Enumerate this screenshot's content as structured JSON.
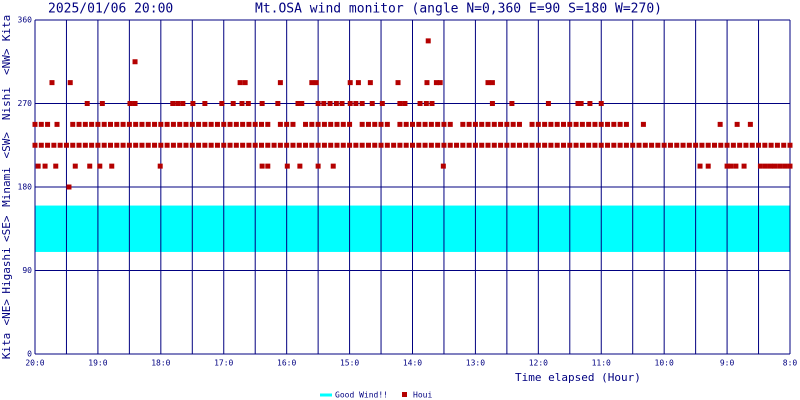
{
  "chart_data": {
    "type": "scatter",
    "date": "2025/01/06 20:00",
    "title": "Mt.OSA wind monitor (angle N=0,360 E=90 S=180 W=270)",
    "x_label": "Time elapsed (Hour)",
    "direction_labels": [
      "Kita",
      "<NE>",
      "Higashi",
      "<SE>",
      "Minami",
      "<SW>",
      "Nishi",
      "<NW>",
      "Kita"
    ],
    "xlim": [
      0,
      12
    ],
    "ylim": [
      0,
      360
    ],
    "xticks": [
      {
        "value": 0,
        "label": "20:0"
      },
      {
        "value": 1,
        "label": "19:0"
      },
      {
        "value": 2,
        "label": "18:0"
      },
      {
        "value": 3,
        "label": "17:0"
      },
      {
        "value": 4,
        "label": "16:0"
      },
      {
        "value": 5,
        "label": "15:0"
      },
      {
        "value": 6,
        "label": "14:0"
      },
      {
        "value": 7,
        "label": "13:0"
      },
      {
        "value": 8,
        "label": "12:0"
      },
      {
        "value": 9,
        "label": "11:0"
      },
      {
        "value": 10,
        "label": "10:0"
      },
      {
        "value": 11,
        "label": "9:0"
      },
      {
        "value": 12,
        "label": "8:0"
      }
    ],
    "xminor": [
      0.5,
      1.5,
      2.5,
      3.5,
      4.5,
      5.5,
      6.5,
      7.5,
      8.5,
      9.5,
      10.5,
      11.5
    ],
    "yticks": [
      0,
      90,
      180,
      270,
      360
    ],
    "grid": true,
    "band": {
      "name": "Good Wind!!",
      "color": "#00ffff",
      "range": [
        110,
        160
      ]
    },
    "series": [
      {
        "name": "Houi",
        "color": "#b40000",
        "x": [
          0,
          0.1,
          0.2,
          0.3,
          0.4,
          0.5,
          0.6,
          0.7,
          0.8,
          0.9,
          1,
          1.1,
          1.2,
          1.3,
          1.4,
          1.5,
          1.6,
          1.7,
          1.8,
          1.9,
          2,
          2.1,
          2.2,
          2.3,
          2.4,
          2.5,
          2.6,
          2.7,
          2.8,
          2.9,
          3,
          3.1,
          3.2,
          3.3,
          3.4,
          3.5,
          3.6,
          3.7,
          3.8,
          3.9,
          4,
          4.1,
          4.2,
          4.3,
          4.4,
          4.5,
          4.6,
          4.7,
          4.8,
          4.9,
          5,
          5.1,
          5.2,
          5.3,
          5.4,
          5.5,
          5.6,
          5.7,
          5.8,
          5.9,
          6,
          6.1,
          6.2,
          6.3,
          6.4,
          6.5,
          6.6,
          6.7,
          6.8,
          6.9,
          7,
          7.1,
          7.2,
          7.3,
          7.4,
          7.5,
          7.6,
          7.7,
          7.8,
          7.9,
          8,
          8.1,
          8.2,
          8.3,
          8.4,
          8.5,
          8.6,
          8.7,
          8.8,
          8.9,
          9,
          9.1,
          9.2,
          9.3,
          9.4,
          9.5,
          9.6,
          9.7,
          9.8,
          9.9,
          10,
          10.1,
          10.2,
          10.3,
          10.4,
          10.5,
          10.6,
          10.7,
          10.8,
          10.9,
          11,
          11.1,
          11.2,
          11.3,
          11.4,
          11.5,
          11.6,
          11.7,
          11.8,
          11.9,
          12,
          0,
          0.1,
          0.2,
          0.35,
          0.6,
          0.7,
          0.8,
          0.9,
          1.0,
          1.1,
          1.2,
          1.3,
          1.4,
          1.5,
          1.6,
          1.7,
          1.8,
          1.9,
          2.0,
          2.1,
          2.2,
          2.3,
          2.4,
          2.5,
          2.6,
          2.7,
          2.8,
          2.9,
          3.0,
          3.1,
          3.2,
          3.3,
          3.4,
          3.5,
          3.6,
          3.7,
          3.9,
          4.0,
          4.1,
          4.3,
          4.4,
          4.5,
          4.6,
          4.7,
          4.8,
          4.9,
          5.0,
          5.2,
          5.3,
          5.4,
          5.5,
          5.6,
          5.8,
          5.9,
          6.0,
          6.1,
          6.2,
          6.3,
          6.4,
          6.5,
          6.6,
          6.8,
          6.9,
          7.0,
          7.1,
          7.2,
          7.3,
          7.4,
          7.5,
          7.6,
          7.7,
          7.9,
          8.0,
          8.1,
          8.2,
          8.3,
          8.4,
          8.5,
          8.6,
          8.7,
          8.8,
          8.9,
          9.0,
          9.1,
          9.2,
          9.3,
          9.4,
          9.67,
          10.89,
          11.16,
          11.37,
          0.83,
          1.07,
          1.51,
          1.59,
          2.19,
          2.27,
          2.35,
          2.51,
          2.7,
          2.97,
          3.15,
          3.29,
          3.39,
          3.61,
          3.86,
          4.18,
          4.24,
          4.5,
          4.59,
          4.69,
          4.79,
          4.88,
          5.01,
          5.1,
          5.2,
          5.36,
          5.52,
          5.8,
          5.88,
          6.12,
          6.22,
          6.31,
          7.27,
          7.58,
          8.16,
          8.63,
          8.68,
          8.82,
          9.0,
          0.27,
          0.56,
          3.26,
          3.34,
          3.9,
          4.4,
          4.47,
          5.01,
          5.14,
          5.33,
          5.77,
          6.23,
          6.38,
          6.44,
          7.2,
          7.27,
          1.59,
          6.25,
          0.05,
          0.16,
          0.33,
          0.64,
          0.87,
          1.03,
          1.22,
          1.99,
          3.61,
          3.7,
          4.01,
          4.21,
          4.5,
          4.74,
          6.49,
          10.57,
          10.7,
          11.0,
          11.06,
          11.14,
          11.27,
          11.53,
          11.61,
          11.69,
          11.76,
          11.84,
          11.92,
          12,
          0.54
        ],
        "values": [
          225,
          225,
          225,
          225,
          225,
          225,
          225,
          225,
          225,
          225,
          225,
          225,
          225,
          225,
          225,
          225,
          225,
          225,
          225,
          225,
          225,
          225,
          225,
          225,
          225,
          225,
          225,
          225,
          225,
          225,
          225,
          225,
          225,
          225,
          225,
          225,
          225,
          225,
          225,
          225,
          225,
          225,
          225,
          225,
          225,
          225,
          225,
          225,
          225,
          225,
          225,
          225,
          225,
          225,
          225,
          225,
          225,
          225,
          225,
          225,
          225,
          225,
          225,
          225,
          225,
          225,
          225,
          225,
          225,
          225,
          225,
          225,
          225,
          225,
          225,
          225,
          225,
          225,
          225,
          225,
          225,
          225,
          225,
          225,
          225,
          225,
          225,
          225,
          225,
          225,
          225,
          225,
          225,
          225,
          225,
          225,
          225,
          225,
          225,
          225,
          225,
          225,
          225,
          225,
          225,
          225,
          225,
          225,
          225,
          225,
          225,
          225,
          225,
          225,
          225,
          225,
          225,
          225,
          225,
          225,
          225,
          247.5,
          247.5,
          247.5,
          247.5,
          247.5,
          247.5,
          247.5,
          247.5,
          247.5,
          247.5,
          247.5,
          247.5,
          247.5,
          247.5,
          247.5,
          247.5,
          247.5,
          247.5,
          247.5,
          247.5,
          247.5,
          247.5,
          247.5,
          247.5,
          247.5,
          247.5,
          247.5,
          247.5,
          247.5,
          247.5,
          247.5,
          247.5,
          247.5,
          247.5,
          247.5,
          247.5,
          247.5,
          247.5,
          247.5,
          247.5,
          247.5,
          247.5,
          247.5,
          247.5,
          247.5,
          247.5,
          247.5,
          247.5,
          247.5,
          247.5,
          247.5,
          247.5,
          247.5,
          247.5,
          247.5,
          247.5,
          247.5,
          247.5,
          247.5,
          247.5,
          247.5,
          247.5,
          247.5,
          247.5,
          247.5,
          247.5,
          247.5,
          247.5,
          247.5,
          247.5,
          247.5,
          247.5,
          247.5,
          247.5,
          247.5,
          247.5,
          247.5,
          247.5,
          247.5,
          247.5,
          247.5,
          247.5,
          247.5,
          247.5,
          247.5,
          247.5,
          247.5,
          247.5,
          247.5,
          247.5,
          247.5,
          270,
          270,
          270,
          270,
          270,
          270,
          270,
          270,
          270,
          270,
          270,
          270,
          270,
          270,
          270,
          270,
          270,
          270,
          270,
          270,
          270,
          270,
          270,
          270,
          270,
          270,
          270,
          270,
          270,
          270,
          270,
          270,
          270,
          270,
          270,
          270,
          270,
          270,
          270,
          292.5,
          292.5,
          292.5,
          292.5,
          292.5,
          292.5,
          292.5,
          292.5,
          292.5,
          292.5,
          292.5,
          292.5,
          292.5,
          292.5,
          292.5,
          292.5,
          315,
          337.5,
          202.5,
          202.5,
          202.5,
          202.5,
          202.5,
          202.5,
          202.5,
          202.5,
          202.5,
          202.5,
          202.5,
          202.5,
          202.5,
          202.5,
          202.5,
          202.5,
          202.5,
          202.5,
          202.5,
          202.5,
          202.5,
          202.5,
          202.5,
          202.5,
          202.5,
          202.5,
          202.5,
          202.5,
          180
        ]
      }
    ]
  }
}
